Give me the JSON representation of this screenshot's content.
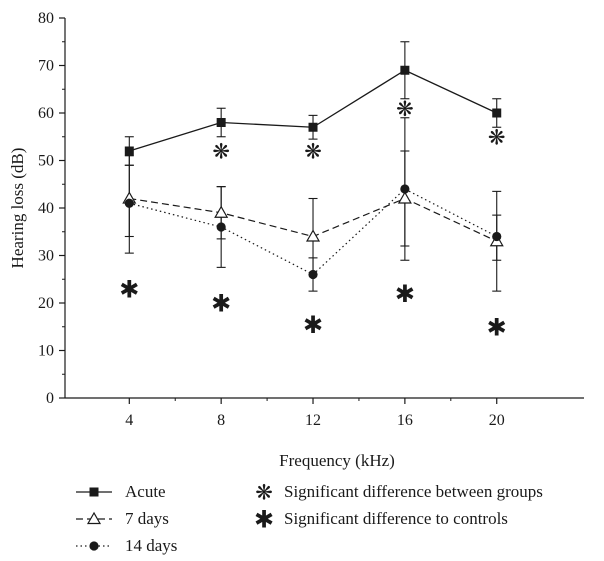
{
  "chart_data": {
    "type": "line",
    "xlabel": "Frequency (kHz)",
    "ylabel": "Hearing loss (dB)",
    "x": [
      4,
      8,
      12,
      16,
      20
    ],
    "x_ticks": [
      "4",
      "8",
      "12",
      "16",
      "20"
    ],
    "xlim": [
      1.2,
      23.8
    ],
    "ylim": [
      0,
      80
    ],
    "y_ticks": [
      0,
      10,
      20,
      30,
      40,
      50,
      60,
      70,
      80
    ],
    "grid": false,
    "legend_position": "bottom",
    "series": [
      {
        "name": "Acute",
        "marker": "filled-square",
        "line": "solid",
        "values": [
          52,
          58,
          57,
          69,
          60
        ],
        "error_high": [
          55,
          61,
          59.5,
          75,
          63
        ],
        "error_low": [
          49,
          55,
          54.5,
          63,
          57
        ]
      },
      {
        "name": "7 days",
        "marker": "open-triangle",
        "line": "dashed",
        "values": [
          42,
          39,
          34,
          42,
          33
        ],
        "error_high": [
          49,
          44.5,
          42,
          52,
          38.5
        ],
        "error_low": [
          34,
          33.5,
          26,
          32,
          29
        ]
      },
      {
        "name": "14 days",
        "marker": "filled-circle",
        "line": "dotted",
        "values": [
          41,
          36,
          26,
          44,
          34
        ],
        "error_high": [
          51,
          44.5,
          29.5,
          59,
          43.5
        ],
        "error_low": [
          30.5,
          27.5,
          22.5,
          29,
          22.5
        ]
      }
    ],
    "annotations": {
      "between_groups": {
        "symbol": "❋",
        "label": "Significant difference between groups",
        "x": [
          8,
          12,
          16,
          20
        ],
        "y": [
          52,
          52,
          61,
          55
        ]
      },
      "to_controls": {
        "symbol": "✱",
        "label": "Significant difference to controls",
        "x": [
          4,
          8,
          12,
          16,
          20
        ],
        "y": [
          23,
          20,
          15.5,
          22,
          15
        ]
      }
    },
    "colors": {
      "ink": "#1a1a1a",
      "background": "#ffffff"
    }
  }
}
